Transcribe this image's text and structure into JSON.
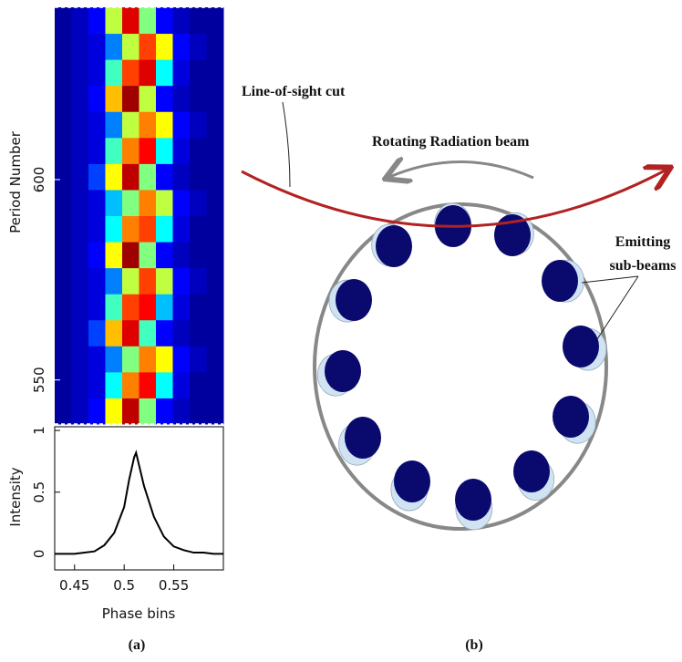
{
  "chart_data": [
    {
      "type": "heatmap",
      "y_label": "Period Number",
      "x_edges": [
        0.43,
        0.447,
        0.464,
        0.481,
        0.498,
        0.515,
        0.532,
        0.549,
        0.566,
        0.583,
        0.6
      ],
      "y_edges": [
        539,
        545.5,
        552,
        558.5,
        565,
        571.5,
        578,
        584.5,
        591,
        597.5,
        604,
        610.5,
        617,
        623.5,
        630,
        636.5,
        643
      ],
      "values": [
        [
          0.05,
          0.1,
          0.2,
          0.6,
          0.9,
          0.5,
          0.2,
          0.1,
          0.05,
          0.05
        ],
        [
          0.05,
          0.1,
          0.15,
          0.4,
          0.7,
          0.8,
          0.4,
          0.15,
          0.05,
          0.05
        ],
        [
          0.05,
          0.1,
          0.15,
          0.3,
          0.5,
          0.7,
          0.6,
          0.2,
          0.1,
          0.05
        ],
        [
          0.05,
          0.1,
          0.25,
          0.65,
          0.85,
          0.45,
          0.2,
          0.1,
          0.05,
          0.05
        ],
        [
          0.05,
          0.1,
          0.15,
          0.45,
          0.75,
          0.8,
          0.35,
          0.15,
          0.05,
          0.05
        ],
        [
          0.05,
          0.1,
          0.15,
          0.3,
          0.55,
          0.75,
          0.55,
          0.2,
          0.1,
          0.05
        ],
        [
          0.05,
          0.1,
          0.2,
          0.6,
          0.95,
          0.5,
          0.2,
          0.1,
          0.05,
          0.05
        ],
        [
          0.05,
          0.1,
          0.15,
          0.4,
          0.7,
          0.75,
          0.4,
          0.15,
          0.05,
          0.05
        ],
        [
          0.05,
          0.1,
          0.15,
          0.35,
          0.5,
          0.7,
          0.55,
          0.2,
          0.1,
          0.05
        ],
        [
          0.05,
          0.1,
          0.25,
          0.6,
          0.9,
          0.5,
          0.2,
          0.1,
          0.05,
          0.05
        ],
        [
          0.05,
          0.1,
          0.15,
          0.45,
          0.7,
          0.8,
          0.4,
          0.15,
          0.05,
          0.05
        ],
        [
          0.05,
          0.1,
          0.15,
          0.3,
          0.55,
          0.7,
          0.6,
          0.2,
          0.1,
          0.05
        ],
        [
          0.05,
          0.1,
          0.2,
          0.65,
          0.95,
          0.55,
          0.2,
          0.1,
          0.05,
          0.05
        ],
        [
          0.05,
          0.1,
          0.15,
          0.45,
          0.75,
          0.85,
          0.4,
          0.15,
          0.05,
          0.05
        ],
        [
          0.05,
          0.1,
          0.15,
          0.3,
          0.55,
          0.75,
          0.6,
          0.2,
          0.1,
          0.05
        ],
        [
          0.05,
          0.1,
          0.2,
          0.55,
          0.85,
          0.5,
          0.2,
          0.1,
          0.05,
          0.05
        ]
      ],
      "zlim": [
        0,
        1
      ],
      "colormap": [
        "#00007f",
        "#0000ff",
        "#00ffff",
        "#ffff00",
        "#ff0000",
        "#7f0000"
      ],
      "xlim": [
        0.43,
        0.6
      ],
      "ylim": [
        539,
        643
      ],
      "yticks": [
        550,
        600
      ]
    },
    {
      "type": "line",
      "x_label": "Phase bins",
      "y_label": "Intensity",
      "color": "#000000",
      "x": [
        0.43,
        0.44,
        0.45,
        0.46,
        0.47,
        0.48,
        0.49,
        0.5,
        0.505,
        0.51,
        0.512,
        0.52,
        0.53,
        0.54,
        0.55,
        0.56,
        0.57,
        0.58,
        0.59,
        0.6
      ],
      "values": [
        0,
        0,
        0,
        0.01,
        0.02,
        0.07,
        0.17,
        0.38,
        0.6,
        0.78,
        0.82,
        0.55,
        0.3,
        0.14,
        0.06,
        0.03,
        0.01,
        0.01,
        0,
        0
      ],
      "xlim": [
        0.43,
        0.6
      ],
      "ylim": [
        -0.13,
        1.03
      ],
      "xticks": [
        0.45,
        {
          "value": 0.5,
          "label": "0.5"
        },
        0.55
      ],
      "yticks": [
        0,
        0.5,
        1
      ]
    }
  ],
  "diagram": {
    "line_of_sight": "Line-of-sight cut",
    "beam": "Rotating Radiation beam",
    "sub_beams": [
      "Emitting",
      "sub-beams"
    ]
  },
  "panel_labels": [
    "(a)",
    "(b)"
  ]
}
